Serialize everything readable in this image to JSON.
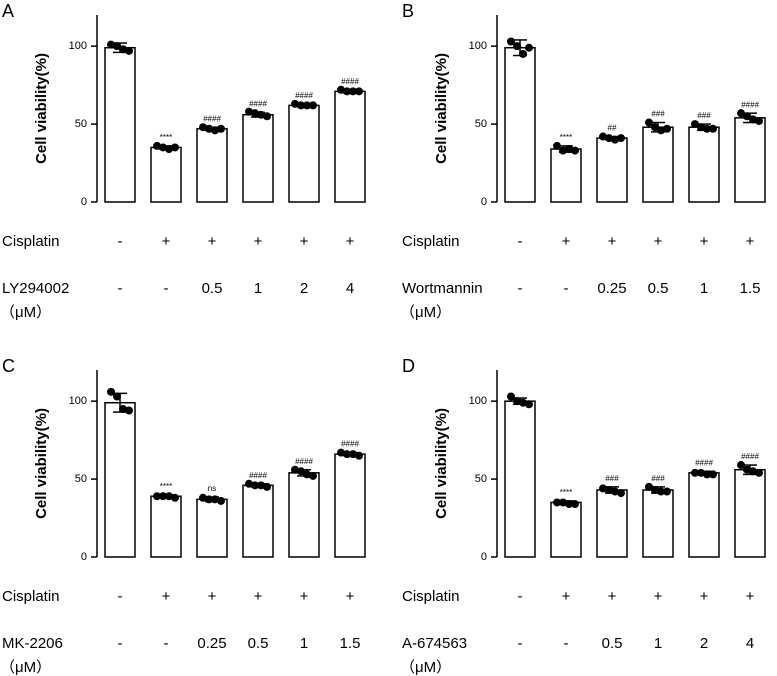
{
  "chart_data": [
    {
      "type": "bar",
      "panel": "A",
      "ylabel": "Cell viability(%)",
      "ylim": [
        0,
        120
      ],
      "yticks": [
        0,
        50,
        100
      ],
      "values": [
        99,
        35,
        47,
        56,
        62,
        71
      ],
      "errors": [
        3,
        1,
        1,
        1.5,
        1,
        1
      ],
      "points": [
        [
          101,
          100,
          98,
          97
        ],
        [
          36,
          35,
          34,
          35
        ],
        [
          48,
          47,
          46,
          47
        ],
        [
          58,
          57,
          56,
          55
        ],
        [
          63,
          62,
          62,
          62
        ],
        [
          72,
          71,
          71,
          71
        ]
      ],
      "annotations": [
        null,
        "****",
        "####",
        "####",
        "####",
        "####"
      ],
      "rows": [
        {
          "label": "Cisplatin",
          "cells": [
            "-",
            "+",
            "+",
            "+",
            "+",
            "+"
          ]
        },
        {
          "label": "LY294002",
          "unit": "（μM）",
          "cells": [
            "-",
            "-",
            "0.5",
            "1",
            "2",
            "4"
          ]
        }
      ]
    },
    {
      "type": "bar",
      "panel": "B",
      "ylabel": "Cell viability(%)",
      "ylim": [
        0,
        120
      ],
      "yticks": [
        0,
        50,
        100
      ],
      "values": [
        99,
        34,
        41,
        48,
        48,
        54
      ],
      "errors": [
        5,
        2,
        1,
        3,
        2,
        3
      ],
      "points": [
        [
          103,
          100,
          95,
          99
        ],
        [
          36,
          33,
          34,
          33
        ],
        [
          42,
          41,
          40,
          41
        ],
        [
          51,
          48,
          46,
          47
        ],
        [
          50,
          48,
          47,
          47
        ],
        [
          57,
          55,
          53,
          52
        ]
      ],
      "annotations": [
        null,
        "****",
        "##",
        "###",
        "###",
        "####"
      ],
      "rows": [
        {
          "label": "Cisplatin",
          "cells": [
            "-",
            "+",
            "+",
            "+",
            "+",
            "+"
          ]
        },
        {
          "label": "Wortmannin",
          "unit": "（μM）",
          "cells": [
            "-",
            "-",
            "0.25",
            "0.5",
            "1",
            "1.5"
          ]
        }
      ]
    },
    {
      "type": "bar",
      "panel": "C",
      "ylabel": "Cell viability(%)",
      "ylim": [
        0,
        120
      ],
      "yticks": [
        0,
        50,
        100
      ],
      "values": [
        99,
        39,
        37,
        46,
        54,
        66
      ],
      "errors": [
        6,
        1,
        1.5,
        1,
        2,
        1
      ],
      "points": [
        [
          106,
          103,
          95,
          94
        ],
        [
          39,
          39,
          39,
          38
        ],
        [
          38,
          37,
          37,
          36
        ],
        [
          47,
          46,
          46,
          45
        ],
        [
          56,
          55,
          53,
          52
        ],
        [
          67,
          66,
          66,
          65
        ]
      ],
      "annotations": [
        null,
        "****",
        "ns",
        "####",
        "####",
        "####"
      ],
      "rows": [
        {
          "label": "Cisplatin",
          "cells": [
            "-",
            "+",
            "+",
            "+",
            "+",
            "+"
          ]
        },
        {
          "label": "MK-2206",
          "unit": "（μM）",
          "cells": [
            "-",
            "-",
            "0.25",
            "0.5",
            "1",
            "1.5"
          ]
        }
      ]
    },
    {
      "type": "bar",
      "panel": "D",
      "ylabel": "Cell viability(%)",
      "ylim": [
        0,
        120
      ],
      "yticks": [
        0,
        50,
        100
      ],
      "values": [
        100,
        35,
        43,
        43,
        54,
        56
      ],
      "errors": [
        2,
        1,
        2,
        2,
        1,
        3
      ],
      "points": [
        [
          103,
          100,
          99,
          98
        ],
        [
          35,
          35,
          34,
          34
        ],
        [
          44,
          43,
          42,
          41
        ],
        [
          45,
          43,
          42,
          42
        ],
        [
          54,
          54,
          53,
          53
        ],
        [
          59,
          56,
          55,
          54
        ]
      ],
      "annotations": [
        null,
        "****",
        "###",
        "###",
        "####",
        "####"
      ],
      "rows": [
        {
          "label": "Cisplatin",
          "cells": [
            "-",
            "+",
            "+",
            "+",
            "+",
            "+"
          ]
        },
        {
          "label": "A-674563",
          "unit": "（μM）",
          "cells": [
            "-",
            "-",
            "0.5",
            "1",
            "2",
            "4"
          ]
        }
      ]
    }
  ]
}
